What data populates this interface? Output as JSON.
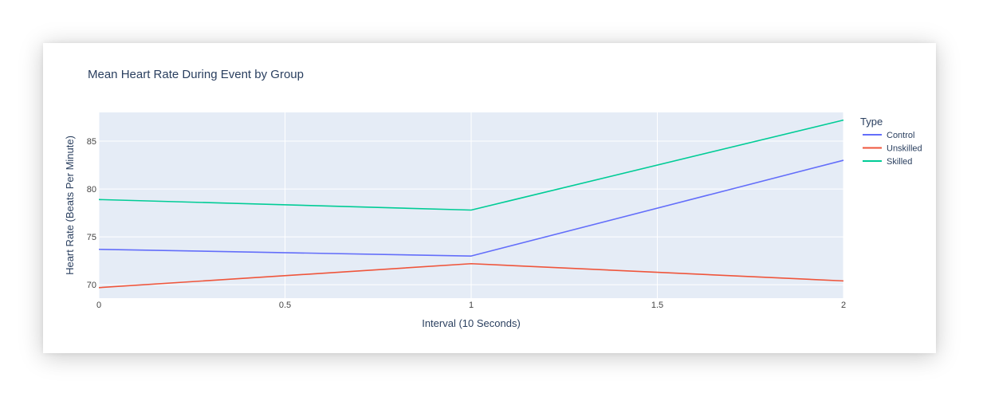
{
  "chart_data": {
    "type": "line",
    "title": "Mean Heart Rate During Event by Group",
    "xlabel": "Interval (10 Seconds)",
    "ylabel": "Heart Rate (Beats Per Minute)",
    "xlim": [
      0,
      2
    ],
    "ylim": [
      68.6,
      88.0
    ],
    "x_ticks": [
      0,
      0.5,
      1,
      1.5,
      2
    ],
    "x_tick_labels": [
      "0",
      "0.5",
      "1",
      "1.5",
      "2"
    ],
    "y_ticks": [
      70,
      75,
      80,
      85
    ],
    "y_tick_labels": [
      "70",
      "75",
      "80",
      "85"
    ],
    "grid": true,
    "legend": {
      "title": "Type",
      "placement": "right"
    },
    "x": [
      0,
      1,
      2
    ],
    "series": [
      {
        "name": "Control",
        "values": [
          73.7,
          73.0,
          83.0
        ],
        "color": "#636efa"
      },
      {
        "name": "Unskilled",
        "values": [
          69.7,
          72.2,
          70.4
        ],
        "color": "#ef553b"
      },
      {
        "name": "Skilled",
        "values": [
          78.9,
          77.8,
          87.2
        ],
        "color": "#00cc96"
      }
    ],
    "colors": {
      "plot_background": "#e5ecf6",
      "grid": "#ffffff",
      "text": "#2a3f5f",
      "tick_text": "#444444"
    }
  }
}
